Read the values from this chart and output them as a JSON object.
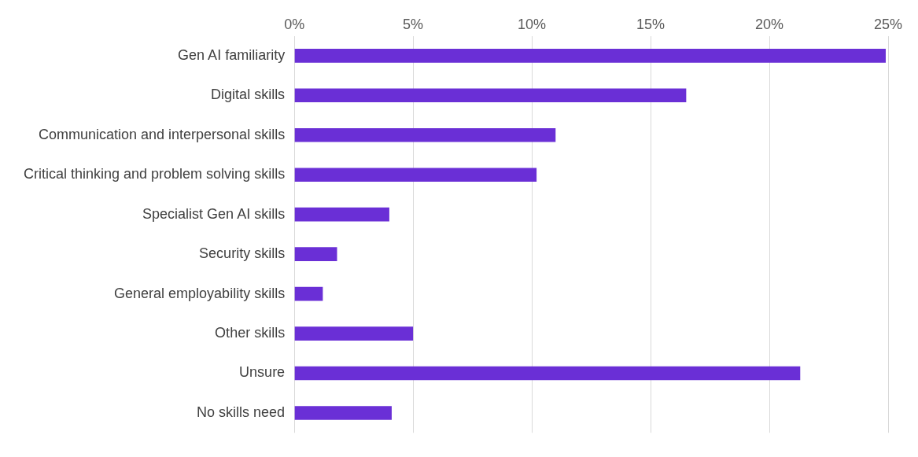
{
  "chart_data": {
    "type": "bar",
    "orientation": "horizontal",
    "categories": [
      "Gen AI familiarity",
      "Digital skills",
      "Communication and interpersonal skills",
      "Critical thinking and problem solving skills",
      "Specialist Gen AI skills",
      "Security skills",
      "General employability skills",
      "Other skills",
      "Unsure",
      "No skills need"
    ],
    "values": [
      24.9,
      16.5,
      11.0,
      10.2,
      4.0,
      1.8,
      1.2,
      5.0,
      21.3,
      4.1
    ],
    "color": "#6a2fd6",
    "xlim": [
      0,
      25
    ],
    "xticks": [
      {
        "value": 0,
        "label": "0%"
      },
      {
        "value": 5,
        "label": "5%"
      },
      {
        "value": 10,
        "label": "10%"
      },
      {
        "value": 15,
        "label": "15%"
      },
      {
        "value": 20,
        "label": "20%"
      },
      {
        "value": 25,
        "label": "25%"
      }
    ],
    "grid": "x",
    "legend": false
  }
}
